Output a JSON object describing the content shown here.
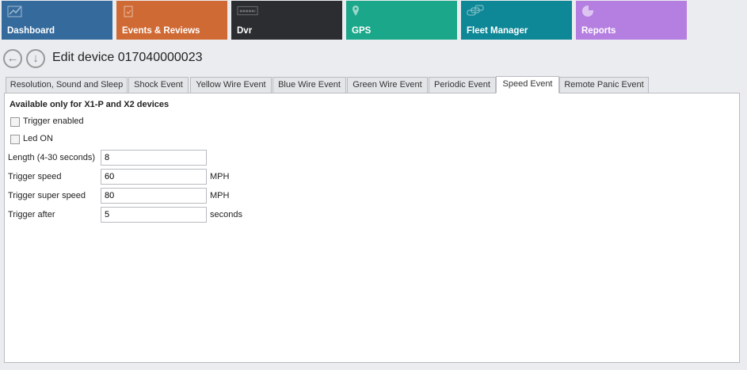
{
  "nav": [
    {
      "label": "Dashboard",
      "icon": "chart-line-icon",
      "color": "#346a9c"
    },
    {
      "label": "Events & Reviews",
      "icon": "clipboard-check-icon",
      "color": "#d06a35"
    },
    {
      "label": "Dvr",
      "icon": "dvr-logo-icon",
      "color": "#2b2d31"
    },
    {
      "label": "GPS",
      "icon": "map-pin-icon",
      "color": "#1ba789"
    },
    {
      "label": "Fleet Manager",
      "icon": "cars-icon",
      "color": "#0e8796"
    },
    {
      "label": "Reports",
      "icon": "pie-chart-icon",
      "color": "#b57fe1"
    }
  ],
  "page_title": "Edit device 017040000023",
  "tabs": [
    "Resolution, Sound and Sleep",
    "Shock Event",
    "Yellow Wire Event",
    "Blue Wire Event",
    "Green Wire Event",
    "Periodic Event",
    "Speed Event",
    "Remote Panic Event"
  ],
  "active_tab": "Speed Event",
  "form": {
    "note": "Available only for X1-P and X2 devices",
    "trigger_enabled": {
      "label": "Trigger enabled",
      "checked": false
    },
    "led_on": {
      "label": "Led ON",
      "checked": false
    },
    "length": {
      "label": "Length (4-30 seconds)",
      "value": "8"
    },
    "trigger_speed": {
      "label": "Trigger speed",
      "value": "60",
      "unit": "MPH"
    },
    "trigger_super_speed": {
      "label": "Trigger super speed",
      "value": "80",
      "unit": "MPH"
    },
    "trigger_after": {
      "label": "Trigger after",
      "value": "5",
      "unit": "seconds"
    }
  }
}
